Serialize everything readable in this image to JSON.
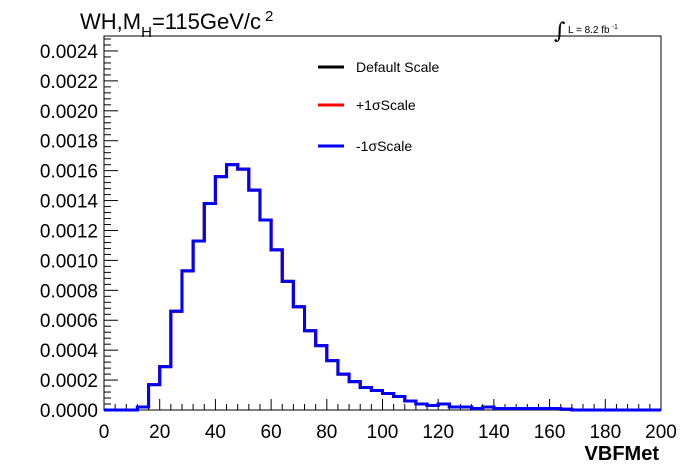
{
  "chart_data": {
    "type": "line",
    "title_main": "WH,M",
    "title_sub": "H",
    "title_rest": "=115GeV/c",
    "title_sup": "2",
    "lumi_label": "L = 8.2 fb",
    "lumi_sup": "-1",
    "lumi_integral": "∫",
    "xlabel": "VBFMet",
    "ylabel": "",
    "xlim": [
      0,
      200
    ],
    "ylim": [
      0,
      0.0025
    ],
    "x_ticks": [
      "0",
      "20",
      "40",
      "60",
      "80",
      "100",
      "120",
      "140",
      "160",
      "180",
      "200"
    ],
    "y_ticks": [
      "0.0000",
      "0.0002",
      "0.0004",
      "0.0006",
      "0.0008",
      "0.0010",
      "0.0012",
      "0.0014",
      "0.0016",
      "0.0018",
      "0.0020",
      "0.0022",
      "0.0024"
    ],
    "bin_width": 4,
    "series": [
      {
        "name": "Default Scale",
        "color": "#000000",
        "bin_low_edges": [
          0,
          4,
          8,
          12,
          16,
          20,
          24,
          28,
          32,
          36,
          40,
          44,
          48,
          52,
          56,
          60,
          64,
          68,
          72,
          76,
          80,
          84,
          88,
          92,
          96,
          100,
          104,
          108,
          112,
          116,
          120,
          124,
          128,
          132,
          136,
          140,
          144,
          148,
          152,
          156,
          160,
          164,
          168,
          172,
          176,
          180,
          184,
          188,
          192,
          196
        ],
        "values": [
          0,
          0,
          0,
          2e-05,
          0.00017,
          0.00029,
          0.00066,
          0.00093,
          0.00113,
          0.00138,
          0.00156,
          0.00164,
          0.00161,
          0.00147,
          0.00127,
          0.00107,
          0.00086,
          0.00069,
          0.00053,
          0.00043,
          0.00033,
          0.00024,
          0.00019,
          0.00015,
          0.00013,
          0.00011,
          9e-05,
          6e-05,
          4e-05,
          3e-05,
          4e-05,
          2e-05,
          2e-05,
          1e-05,
          2e-05,
          1e-05,
          1e-05,
          1e-05,
          1e-05,
          1e-05,
          1e-05,
          5e-06,
          0,
          0,
          0,
          0,
          0,
          0,
          0,
          0
        ]
      },
      {
        "name": "+1σScale",
        "color": "#ff0000",
        "bin_low_edges": [
          0,
          4,
          8,
          12,
          16,
          20,
          24,
          28,
          32,
          36,
          40,
          44,
          48,
          52,
          56,
          60,
          64,
          68,
          72,
          76,
          80,
          84,
          88,
          92,
          96,
          100,
          104,
          108,
          112,
          116,
          120,
          124,
          128,
          132,
          136,
          140,
          144,
          148,
          152,
          156,
          160,
          164,
          168,
          172,
          176,
          180,
          184,
          188,
          192,
          196
        ],
        "values": [
          0,
          0,
          0,
          2e-05,
          0.00017,
          0.00029,
          0.00066,
          0.00093,
          0.00113,
          0.00138,
          0.00156,
          0.00164,
          0.00161,
          0.00147,
          0.00127,
          0.00107,
          0.00086,
          0.00069,
          0.00053,
          0.00043,
          0.00033,
          0.00024,
          0.00019,
          0.00015,
          0.00013,
          0.00011,
          9e-05,
          6e-05,
          4e-05,
          3e-05,
          4e-05,
          2e-05,
          2e-05,
          1e-05,
          2e-05,
          1e-05,
          1e-05,
          1e-05,
          1e-05,
          1e-05,
          1e-05,
          5e-06,
          0,
          0,
          0,
          0,
          0,
          0,
          0,
          0
        ]
      },
      {
        "name": "-1σScale",
        "color": "#0000ff",
        "bin_low_edges": [
          0,
          4,
          8,
          12,
          16,
          20,
          24,
          28,
          32,
          36,
          40,
          44,
          48,
          52,
          56,
          60,
          64,
          68,
          72,
          76,
          80,
          84,
          88,
          92,
          96,
          100,
          104,
          108,
          112,
          116,
          120,
          124,
          128,
          132,
          136,
          140,
          144,
          148,
          152,
          156,
          160,
          164,
          168,
          172,
          176,
          180,
          184,
          188,
          192,
          196
        ],
        "values": [
          0,
          0,
          0,
          2e-05,
          0.00017,
          0.00029,
          0.00066,
          0.00093,
          0.00113,
          0.00138,
          0.00156,
          0.00164,
          0.00161,
          0.00147,
          0.00127,
          0.00107,
          0.00086,
          0.00069,
          0.00053,
          0.00043,
          0.00033,
          0.00024,
          0.00019,
          0.00015,
          0.00013,
          0.00011,
          9e-05,
          6e-05,
          4e-05,
          3e-05,
          4e-05,
          2e-05,
          2e-05,
          1e-05,
          2e-05,
          1e-05,
          1e-05,
          1e-05,
          1e-05,
          1e-05,
          1e-05,
          5e-06,
          0,
          0,
          0,
          0,
          0,
          0,
          0,
          0
        ]
      }
    ],
    "legend_position": "top-center",
    "grid": false
  }
}
